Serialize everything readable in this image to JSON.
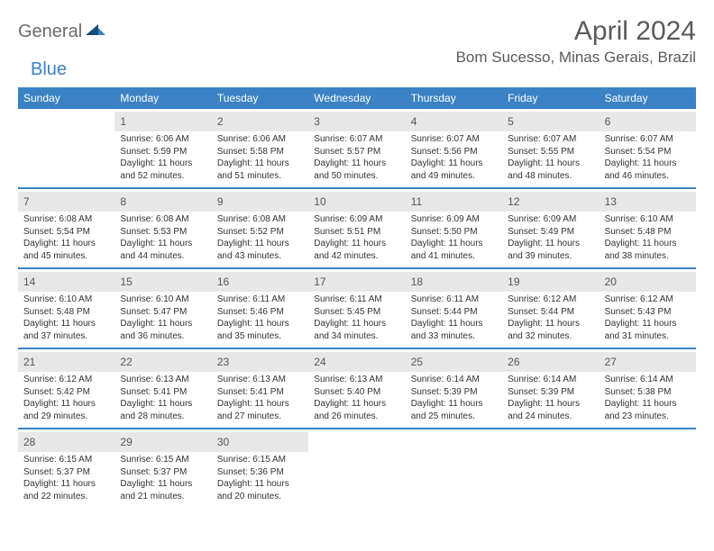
{
  "header": {
    "logo_general": "General",
    "logo_blue": "Blue",
    "month_title": "April 2024",
    "location": "Bom Sucesso, Minas Gerais, Brazil"
  },
  "colors": {
    "header_bar": "#3b82c4",
    "day_number_bg": "#e8e8e8",
    "text": "#333333",
    "title_text": "#5a5a5a",
    "logo_gray": "#6b6b6b",
    "logo_blue": "#3b82c4"
  },
  "day_labels": [
    "Sunday",
    "Monday",
    "Tuesday",
    "Wednesday",
    "Thursday",
    "Friday",
    "Saturday"
  ],
  "weeks": [
    [
      {
        "empty": true
      },
      {
        "num": "1",
        "sunrise": "Sunrise: 6:06 AM",
        "sunset": "Sunset: 5:59 PM",
        "daylight1": "Daylight: 11 hours",
        "daylight2": "and 52 minutes."
      },
      {
        "num": "2",
        "sunrise": "Sunrise: 6:06 AM",
        "sunset": "Sunset: 5:58 PM",
        "daylight1": "Daylight: 11 hours",
        "daylight2": "and 51 minutes."
      },
      {
        "num": "3",
        "sunrise": "Sunrise: 6:07 AM",
        "sunset": "Sunset: 5:57 PM",
        "daylight1": "Daylight: 11 hours",
        "daylight2": "and 50 minutes."
      },
      {
        "num": "4",
        "sunrise": "Sunrise: 6:07 AM",
        "sunset": "Sunset: 5:56 PM",
        "daylight1": "Daylight: 11 hours",
        "daylight2": "and 49 minutes."
      },
      {
        "num": "5",
        "sunrise": "Sunrise: 6:07 AM",
        "sunset": "Sunset: 5:55 PM",
        "daylight1": "Daylight: 11 hours",
        "daylight2": "and 48 minutes."
      },
      {
        "num": "6",
        "sunrise": "Sunrise: 6:07 AM",
        "sunset": "Sunset: 5:54 PM",
        "daylight1": "Daylight: 11 hours",
        "daylight2": "and 46 minutes."
      }
    ],
    [
      {
        "num": "7",
        "sunrise": "Sunrise: 6:08 AM",
        "sunset": "Sunset: 5:54 PM",
        "daylight1": "Daylight: 11 hours",
        "daylight2": "and 45 minutes."
      },
      {
        "num": "8",
        "sunrise": "Sunrise: 6:08 AM",
        "sunset": "Sunset: 5:53 PM",
        "daylight1": "Daylight: 11 hours",
        "daylight2": "and 44 minutes."
      },
      {
        "num": "9",
        "sunrise": "Sunrise: 6:08 AM",
        "sunset": "Sunset: 5:52 PM",
        "daylight1": "Daylight: 11 hours",
        "daylight2": "and 43 minutes."
      },
      {
        "num": "10",
        "sunrise": "Sunrise: 6:09 AM",
        "sunset": "Sunset: 5:51 PM",
        "daylight1": "Daylight: 11 hours",
        "daylight2": "and 42 minutes."
      },
      {
        "num": "11",
        "sunrise": "Sunrise: 6:09 AM",
        "sunset": "Sunset: 5:50 PM",
        "daylight1": "Daylight: 11 hours",
        "daylight2": "and 41 minutes."
      },
      {
        "num": "12",
        "sunrise": "Sunrise: 6:09 AM",
        "sunset": "Sunset: 5:49 PM",
        "daylight1": "Daylight: 11 hours",
        "daylight2": "and 39 minutes."
      },
      {
        "num": "13",
        "sunrise": "Sunrise: 6:10 AM",
        "sunset": "Sunset: 5:48 PM",
        "daylight1": "Daylight: 11 hours",
        "daylight2": "and 38 minutes."
      }
    ],
    [
      {
        "num": "14",
        "sunrise": "Sunrise: 6:10 AM",
        "sunset": "Sunset: 5:48 PM",
        "daylight1": "Daylight: 11 hours",
        "daylight2": "and 37 minutes."
      },
      {
        "num": "15",
        "sunrise": "Sunrise: 6:10 AM",
        "sunset": "Sunset: 5:47 PM",
        "daylight1": "Daylight: 11 hours",
        "daylight2": "and 36 minutes."
      },
      {
        "num": "16",
        "sunrise": "Sunrise: 6:11 AM",
        "sunset": "Sunset: 5:46 PM",
        "daylight1": "Daylight: 11 hours",
        "daylight2": "and 35 minutes."
      },
      {
        "num": "17",
        "sunrise": "Sunrise: 6:11 AM",
        "sunset": "Sunset: 5:45 PM",
        "daylight1": "Daylight: 11 hours",
        "daylight2": "and 34 minutes."
      },
      {
        "num": "18",
        "sunrise": "Sunrise: 6:11 AM",
        "sunset": "Sunset: 5:44 PM",
        "daylight1": "Daylight: 11 hours",
        "daylight2": "and 33 minutes."
      },
      {
        "num": "19",
        "sunrise": "Sunrise: 6:12 AM",
        "sunset": "Sunset: 5:44 PM",
        "daylight1": "Daylight: 11 hours",
        "daylight2": "and 32 minutes."
      },
      {
        "num": "20",
        "sunrise": "Sunrise: 6:12 AM",
        "sunset": "Sunset: 5:43 PM",
        "daylight1": "Daylight: 11 hours",
        "daylight2": "and 31 minutes."
      }
    ],
    [
      {
        "num": "21",
        "sunrise": "Sunrise: 6:12 AM",
        "sunset": "Sunset: 5:42 PM",
        "daylight1": "Daylight: 11 hours",
        "daylight2": "and 29 minutes."
      },
      {
        "num": "22",
        "sunrise": "Sunrise: 6:13 AM",
        "sunset": "Sunset: 5:41 PM",
        "daylight1": "Daylight: 11 hours",
        "daylight2": "and 28 minutes."
      },
      {
        "num": "23",
        "sunrise": "Sunrise: 6:13 AM",
        "sunset": "Sunset: 5:41 PM",
        "daylight1": "Daylight: 11 hours",
        "daylight2": "and 27 minutes."
      },
      {
        "num": "24",
        "sunrise": "Sunrise: 6:13 AM",
        "sunset": "Sunset: 5:40 PM",
        "daylight1": "Daylight: 11 hours",
        "daylight2": "and 26 minutes."
      },
      {
        "num": "25",
        "sunrise": "Sunrise: 6:14 AM",
        "sunset": "Sunset: 5:39 PM",
        "daylight1": "Daylight: 11 hours",
        "daylight2": "and 25 minutes."
      },
      {
        "num": "26",
        "sunrise": "Sunrise: 6:14 AM",
        "sunset": "Sunset: 5:39 PM",
        "daylight1": "Daylight: 11 hours",
        "daylight2": "and 24 minutes."
      },
      {
        "num": "27",
        "sunrise": "Sunrise: 6:14 AM",
        "sunset": "Sunset: 5:38 PM",
        "daylight1": "Daylight: 11 hours",
        "daylight2": "and 23 minutes."
      }
    ],
    [
      {
        "num": "28",
        "sunrise": "Sunrise: 6:15 AM",
        "sunset": "Sunset: 5:37 PM",
        "daylight1": "Daylight: 11 hours",
        "daylight2": "and 22 minutes."
      },
      {
        "num": "29",
        "sunrise": "Sunrise: 6:15 AM",
        "sunset": "Sunset: 5:37 PM",
        "daylight1": "Daylight: 11 hours",
        "daylight2": "and 21 minutes."
      },
      {
        "num": "30",
        "sunrise": "Sunrise: 6:15 AM",
        "sunset": "Sunset: 5:36 PM",
        "daylight1": "Daylight: 11 hours",
        "daylight2": "and 20 minutes."
      },
      {
        "empty": true
      },
      {
        "empty": true
      },
      {
        "empty": true
      },
      {
        "empty": true
      }
    ]
  ]
}
